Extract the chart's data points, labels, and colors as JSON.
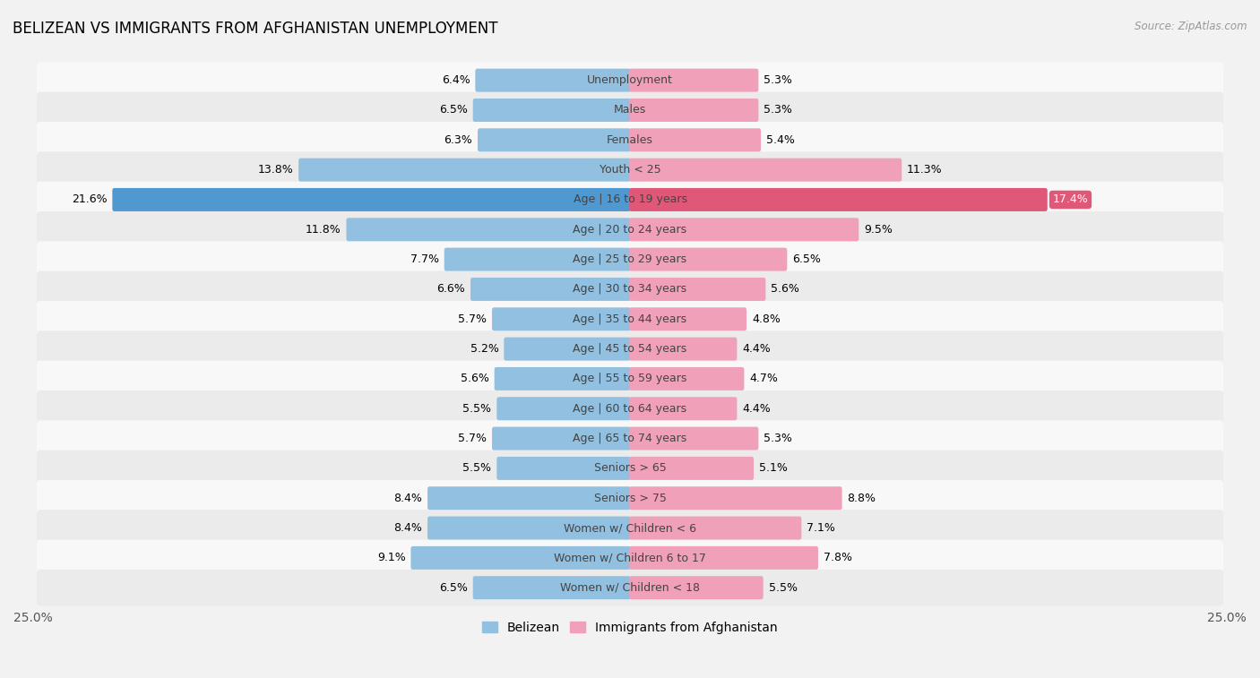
{
  "title": "BELIZEAN VS IMMIGRANTS FROM AFGHANISTAN UNEMPLOYMENT",
  "source": "Source: ZipAtlas.com",
  "categories": [
    "Unemployment",
    "Males",
    "Females",
    "Youth < 25",
    "Age | 16 to 19 years",
    "Age | 20 to 24 years",
    "Age | 25 to 29 years",
    "Age | 30 to 34 years",
    "Age | 35 to 44 years",
    "Age | 45 to 54 years",
    "Age | 55 to 59 years",
    "Age | 60 to 64 years",
    "Age | 65 to 74 years",
    "Seniors > 65",
    "Seniors > 75",
    "Women w/ Children < 6",
    "Women w/ Children 6 to 17",
    "Women w/ Children < 18"
  ],
  "belizean": [
    6.4,
    6.5,
    6.3,
    13.8,
    21.6,
    11.8,
    7.7,
    6.6,
    5.7,
    5.2,
    5.6,
    5.5,
    5.7,
    5.5,
    8.4,
    8.4,
    9.1,
    6.5
  ],
  "afghanistan": [
    5.3,
    5.3,
    5.4,
    11.3,
    17.4,
    9.5,
    6.5,
    5.6,
    4.8,
    4.4,
    4.7,
    4.4,
    5.3,
    5.1,
    8.8,
    7.1,
    7.8,
    5.5
  ],
  "belizean_color": "#92c0e0",
  "afghanistan_color": "#f0a0b8",
  "belizean_highlight_color": "#5098d0",
  "afghanistan_highlight_color": "#e05878",
  "bg_color": "#f2f2f2",
  "row_color_odd": "#f8f8f8",
  "row_color_even": "#ebebeb",
  "axis_limit": 25.0,
  "bar_height": 0.62,
  "label_fontsize": 9.0,
  "category_fontsize": 9.0,
  "title_fontsize": 12,
  "legend_fontsize": 10,
  "highlight_row": "Age | 16 to 19 years"
}
